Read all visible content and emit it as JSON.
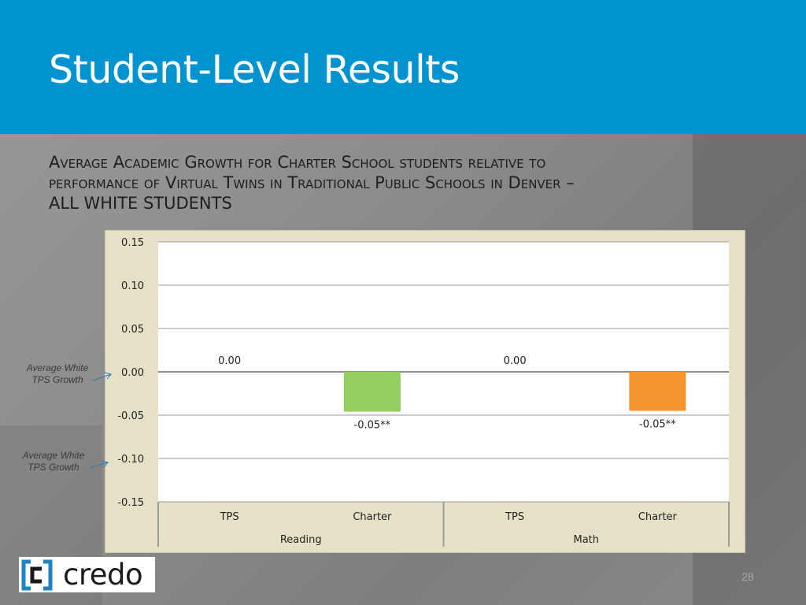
{
  "slide": {
    "title": "Student-Level Results",
    "subtitle_line1": "Average Academic Growth for Charter School students relative to",
    "subtitle_line2": "performance of Virtual Twins in Traditional Public Schools in Denver –",
    "subtitle_line3": "ALL WHITE STUDENTS",
    "annotation_upper": "Average White TPS Growth",
    "annotation_lower": "Average White TPS Growth",
    "logo_text": "credo",
    "page_number": "28",
    "colors": {
      "header": "#0093d0",
      "chart_frame": "#e4e1c6",
      "reading_charter_bar": "#93cf63",
      "math_charter_bar": "#f5952f",
      "logo_accent": "#1f84c6"
    }
  },
  "chart_data": {
    "type": "bar",
    "ylim": [
      -0.15,
      0.15
    ],
    "yticks": [
      "0.15",
      "0.10",
      "0.05",
      "0.00",
      "-0.05",
      "-0.10",
      "-0.15"
    ],
    "ytick_values": [
      0.15,
      0.1,
      0.05,
      0.0,
      -0.05,
      -0.1,
      -0.15
    ],
    "grid": true,
    "groups": [
      {
        "name": "Reading",
        "bars": [
          {
            "category": "TPS",
            "value": 0.0,
            "label": "0.00",
            "color": "#93cf63"
          },
          {
            "category": "Charter",
            "value": -0.046,
            "label": "-0.05**",
            "color": "#93cf63"
          }
        ]
      },
      {
        "name": "Math",
        "bars": [
          {
            "category": "TPS",
            "value": 0.0,
            "label": "0.00",
            "color": "#f5952f"
          },
          {
            "category": "Charter",
            "value": -0.045,
            "label": "-0.05**",
            "color": "#f5952f"
          }
        ]
      }
    ]
  }
}
